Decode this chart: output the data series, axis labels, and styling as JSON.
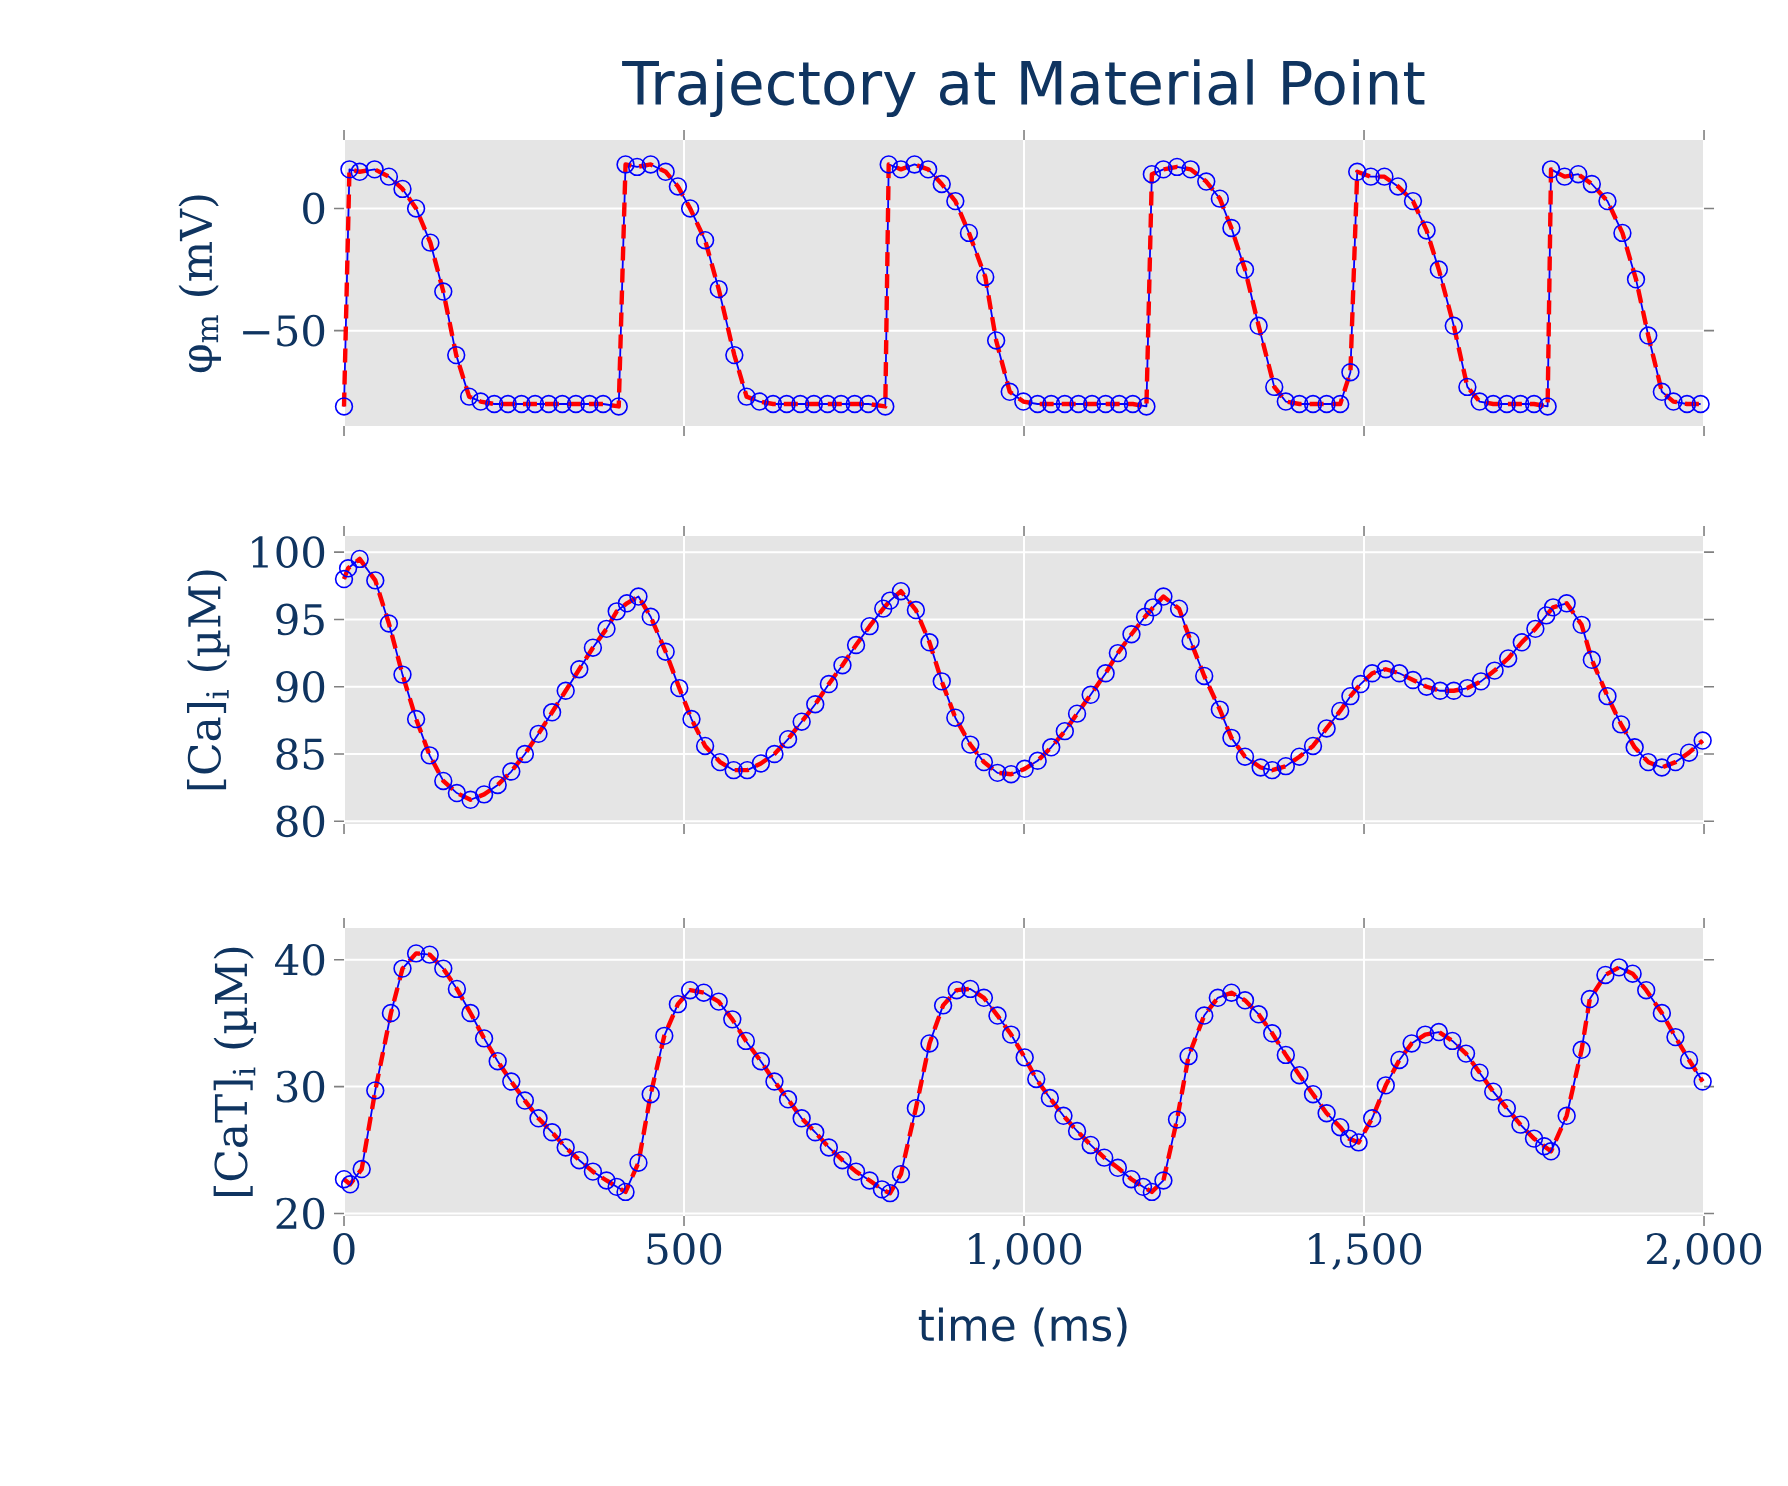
{
  "chart_data": [
    {
      "type": "line",
      "title": "Trajectory at Material Point",
      "ylabel": "φ$_{m}$ (mV)",
      "grid": true,
      "tick_labels": "y",
      "xlim": [
        0,
        2000
      ],
      "ylim": [
        -89,
        28
      ],
      "xticks": [
        0,
        500,
        1000,
        1500,
        2000
      ],
      "yticks": [
        {
          "value": -50,
          "label": "−50"
        },
        0
      ],
      "x": [
        0,
        8,
        23,
        45,
        66,
        86,
        106,
        127,
        146,
        165,
        184,
        201,
        221,
        241,
        261,
        281,
        301,
        321,
        341,
        361,
        381,
        404,
        414,
        431,
        451,
        473,
        491,
        509,
        531,
        551,
        574,
        592,
        611,
        631,
        651,
        671,
        691,
        711,
        731,
        751,
        771,
        796,
        801,
        819,
        839,
        859,
        879,
        899,
        919,
        943,
        959,
        979,
        999,
        1020,
        1040,
        1060,
        1080,
        1100,
        1120,
        1140,
        1160,
        1180,
        1188,
        1205,
        1225,
        1245,
        1268,
        1288,
        1305,
        1325,
        1345,
        1368,
        1385,
        1405,
        1425,
        1445,
        1465,
        1480,
        1490,
        1510,
        1530,
        1550,
        1572,
        1592,
        1610,
        1632,
        1652,
        1670,
        1690,
        1710,
        1730,
        1750,
        1770,
        1775,
        1795,
        1815,
        1835,
        1858,
        1880,
        1900,
        1918,
        1938,
        1955,
        1975,
        1995
      ],
      "series": [
        {
          "color": "#0000ff",
          "marker": "circle",
          "line_style": "solid",
          "values": [
            -81,
            16,
            15,
            16,
            13,
            8,
            0,
            -14,
            -34,
            -60,
            -77,
            -79,
            -80,
            -80,
            -80,
            -80,
            -80,
            -80,
            -80,
            -80,
            -80,
            -81,
            18,
            17,
            18,
            15,
            9,
            0,
            -13,
            -33,
            -60,
            -77,
            -79,
            -80,
            -80,
            -80,
            -80,
            -80,
            -80,
            -80,
            -80,
            -81,
            18,
            16,
            18,
            16,
            10,
            3,
            -10,
            -28,
            -54,
            -75,
            -79,
            -80,
            -80,
            -80,
            -80,
            -80,
            -80,
            -80,
            -80,
            -81,
            14,
            16,
            17,
            16,
            11,
            4,
            -8,
            -25,
            -48,
            -73,
            -79,
            -80,
            -80,
            -80,
            -80,
            -67,
            15,
            13,
            13,
            9,
            3,
            -9,
            -25,
            -48,
            -73,
            -79,
            -80,
            -80,
            -80,
            -80,
            -81,
            16,
            13,
            14,
            10,
            3,
            -10,
            -29,
            -52,
            -75,
            -79,
            -80,
            -80
          ]
        },
        {
          "color": "#ff0000",
          "marker": "none",
          "line_style": "dashed",
          "values": [
            -81,
            16,
            15,
            16,
            13,
            8,
            0,
            -14,
            -34,
            -60,
            -77,
            -79,
            -80,
            -80,
            -80,
            -80,
            -80,
            -80,
            -80,
            -80,
            -80,
            -81,
            18,
            17,
            18,
            15,
            9,
            0,
            -13,
            -33,
            -60,
            -77,
            -79,
            -80,
            -80,
            -80,
            -80,
            -80,
            -80,
            -80,
            -80,
            -81,
            18,
            16,
            18,
            16,
            10,
            3,
            -10,
            -28,
            -54,
            -75,
            -79,
            -80,
            -80,
            -80,
            -80,
            -80,
            -80,
            -80,
            -80,
            -81,
            14,
            16,
            17,
            16,
            11,
            4,
            -8,
            -25,
            -48,
            -73,
            -79,
            -80,
            -80,
            -80,
            -80,
            -67,
            15,
            13,
            13,
            9,
            3,
            -9,
            -25,
            -48,
            -73,
            -79,
            -80,
            -80,
            -80,
            -80,
            -81,
            16,
            13,
            14,
            10,
            3,
            -10,
            -29,
            -52,
            -75,
            -79,
            -80,
            -80
          ]
        }
      ]
    },
    {
      "type": "line",
      "ylabel": "[Ca]$_{i}$ (µM)",
      "grid": true,
      "tick_labels": "y",
      "xlim": [
        0,
        2000
      ],
      "ylim": [
        79.8,
        101.2
      ],
      "xticks": [
        0,
        500,
        1000,
        1500,
        2000
      ],
      "yticks": [
        80,
        85,
        90,
        95,
        100
      ],
      "x": [
        0,
        6,
        23,
        46,
        66,
        86,
        106,
        126,
        146,
        166,
        186,
        206,
        226,
        246,
        266,
        286,
        306,
        326,
        346,
        366,
        386,
        401,
        416,
        433,
        451,
        473,
        493,
        511,
        531,
        553,
        573,
        593,
        613,
        633,
        653,
        673,
        693,
        713,
        733,
        753,
        773,
        793,
        803,
        819,
        841,
        861,
        879,
        899,
        921,
        941,
        961,
        981,
        1001,
        1020,
        1040,
        1060,
        1078,
        1098,
        1120,
        1138,
        1158,
        1178,
        1190,
        1205,
        1228,
        1245,
        1265,
        1288,
        1305,
        1325,
        1348,
        1365,
        1385,
        1405,
        1425,
        1445,
        1465,
        1480,
        1495,
        1512,
        1532,
        1552,
        1572,
        1592,
        1612,
        1632,
        1652,
        1672,
        1692,
        1712,
        1732,
        1752,
        1768,
        1778,
        1798,
        1820,
        1835,
        1858,
        1878,
        1898,
        1918,
        1938,
        1958,
        1978,
        1998
      ],
      "series": [
        {
          "color": "#0000ff",
          "marker": "circle",
          "line_style": "solid",
          "values": [
            98.0,
            98.8,
            99.5,
            97.9,
            94.7,
            90.9,
            87.6,
            84.9,
            83.0,
            82.1,
            81.6,
            82.0,
            82.7,
            83.7,
            85.0,
            86.5,
            88.1,
            89.7,
            91.3,
            92.9,
            94.3,
            95.6,
            96.2,
            96.7,
            95.2,
            92.6,
            89.9,
            87.6,
            85.6,
            84.4,
            83.8,
            83.8,
            84.3,
            85.0,
            86.1,
            87.4,
            88.7,
            90.2,
            91.6,
            93.1,
            94.5,
            95.8,
            96.4,
            97.1,
            95.7,
            93.3,
            90.4,
            87.7,
            85.7,
            84.4,
            83.6,
            83.5,
            83.9,
            84.5,
            85.5,
            86.7,
            88.0,
            89.4,
            91.0,
            92.5,
            93.9,
            95.2,
            95.9,
            96.7,
            95.8,
            93.4,
            90.8,
            88.3,
            86.2,
            84.8,
            84.0,
            83.8,
            84.1,
            84.8,
            85.6,
            86.9,
            88.2,
            89.3,
            90.2,
            91.0,
            91.3,
            91.0,
            90.5,
            90.0,
            89.7,
            89.7,
            89.9,
            90.4,
            91.2,
            92.1,
            93.3,
            94.3,
            95.3,
            95.9,
            96.2,
            94.6,
            92.0,
            89.3,
            87.2,
            85.5,
            84.4,
            84.0,
            84.4,
            85.1,
            86.0
          ]
        },
        {
          "color": "#ff0000",
          "marker": "none",
          "line_style": "dashed",
          "values": [
            98.0,
            98.8,
            99.5,
            97.9,
            94.7,
            90.9,
            87.6,
            84.9,
            83.0,
            82.1,
            81.6,
            82.0,
            82.7,
            83.7,
            85.0,
            86.5,
            88.1,
            89.7,
            91.3,
            92.9,
            94.3,
            95.6,
            96.2,
            96.7,
            95.2,
            92.6,
            89.9,
            87.6,
            85.6,
            84.4,
            83.8,
            83.8,
            84.3,
            85.0,
            86.1,
            87.4,
            88.7,
            90.2,
            91.6,
            93.1,
            94.5,
            95.8,
            96.4,
            97.1,
            95.7,
            93.3,
            90.4,
            87.7,
            85.7,
            84.4,
            83.6,
            83.5,
            83.9,
            84.5,
            85.5,
            86.7,
            88.0,
            89.4,
            91.0,
            92.5,
            93.9,
            95.2,
            95.9,
            96.7,
            95.8,
            93.4,
            90.8,
            88.3,
            86.2,
            84.8,
            84.0,
            83.8,
            84.1,
            84.8,
            85.6,
            86.9,
            88.2,
            89.3,
            90.2,
            91.0,
            91.3,
            91.0,
            90.5,
            90.0,
            89.7,
            89.7,
            89.9,
            90.4,
            91.2,
            92.1,
            93.3,
            94.3,
            95.3,
            95.9,
            96.2,
            94.6,
            92.0,
            89.3,
            87.2,
            85.5,
            84.4,
            84.0,
            84.4,
            85.1,
            86.0
          ]
        }
      ]
    },
    {
      "type": "line",
      "ylabel": "[CaT]$_{i}$ (µM)",
      "xlabel": "time (ms)",
      "grid": true,
      "xlim": [
        0,
        2000
      ],
      "ylim": [
        19.8,
        42.5
      ],
      "xticks": [
        {
          "value": 0,
          "label": "0"
        },
        {
          "value": 500,
          "label": "500"
        },
        {
          "value": 1000,
          "label": "1,000"
        },
        {
          "value": 1500,
          "label": "1,500"
        },
        {
          "value": 2000,
          "label": "2,000"
        }
      ],
      "yticks": [
        20,
        30,
        40
      ],
      "x": [
        0,
        9,
        26,
        46,
        69,
        86,
        106,
        126,
        146,
        166,
        186,
        206,
        226,
        246,
        266,
        286,
        306,
        326,
        346,
        366,
        386,
        401,
        414,
        433,
        451,
        471,
        491,
        509,
        529,
        551,
        571,
        591,
        613,
        633,
        653,
        673,
        693,
        713,
        733,
        753,
        773,
        791,
        803,
        819,
        841,
        861,
        881,
        901,
        921,
        941,
        961,
        981,
        1001,
        1018,
        1038,
        1058,
        1078,
        1098,
        1118,
        1138,
        1158,
        1175,
        1188,
        1205,
        1225,
        1242,
        1265,
        1285,
        1305,
        1325,
        1345,
        1365,
        1385,
        1405,
        1425,
        1445,
        1465,
        1478,
        1492,
        1512,
        1532,
        1552,
        1570,
        1590,
        1610,
        1630,
        1650,
        1670,
        1690,
        1710,
        1730,
        1750,
        1765,
        1775,
        1798,
        1820,
        1832,
        1855,
        1875,
        1895,
        1915,
        1938,
        1958,
        1978,
        1998
      ],
      "series": [
        {
          "color": "#0000ff",
          "marker": "circle",
          "line_style": "solid",
          "values": [
            22.7,
            22.3,
            23.5,
            29.7,
            35.8,
            39.3,
            40.5,
            40.4,
            39.3,
            37.7,
            35.8,
            33.8,
            32.0,
            30.4,
            28.9,
            27.5,
            26.4,
            25.2,
            24.2,
            23.3,
            22.6,
            22.1,
            21.7,
            24.0,
            29.4,
            34.0,
            36.5,
            37.6,
            37.4,
            36.7,
            35.3,
            33.6,
            32.0,
            30.4,
            29.0,
            27.5,
            26.4,
            25.2,
            24.2,
            23.3,
            22.6,
            21.9,
            21.6,
            23.1,
            28.3,
            33.4,
            36.4,
            37.6,
            37.7,
            37.0,
            35.6,
            34.1,
            32.3,
            30.6,
            29.1,
            27.7,
            26.5,
            25.4,
            24.4,
            23.6,
            22.7,
            22.1,
            21.7,
            22.6,
            27.4,
            32.4,
            35.6,
            37.0,
            37.4,
            36.8,
            35.7,
            34.2,
            32.5,
            30.9,
            29.4,
            27.9,
            26.8,
            25.9,
            25.6,
            27.5,
            30.1,
            32.1,
            33.4,
            34.1,
            34.3,
            33.6,
            32.6,
            31.1,
            29.6,
            28.3,
            27.0,
            25.9,
            25.3,
            24.9,
            27.7,
            32.9,
            36.9,
            38.8,
            39.4,
            38.9,
            37.6,
            35.8,
            33.9,
            32.1,
            30.4
          ]
        },
        {
          "color": "#ff0000",
          "marker": "none",
          "line_style": "dashed",
          "values": [
            22.7,
            22.3,
            23.5,
            29.7,
            35.8,
            39.3,
            40.5,
            40.4,
            39.3,
            37.7,
            35.8,
            33.8,
            32.0,
            30.4,
            28.9,
            27.5,
            26.4,
            25.2,
            24.2,
            23.3,
            22.6,
            22.1,
            21.7,
            24.0,
            29.4,
            34.0,
            36.5,
            37.6,
            37.4,
            36.7,
            35.3,
            33.6,
            32.0,
            30.4,
            29.0,
            27.5,
            26.4,
            25.2,
            24.2,
            23.3,
            22.6,
            21.9,
            21.6,
            23.1,
            28.3,
            33.4,
            36.4,
            37.6,
            37.7,
            37.0,
            35.6,
            34.1,
            32.3,
            30.6,
            29.1,
            27.7,
            26.5,
            25.4,
            24.4,
            23.6,
            22.7,
            22.1,
            21.7,
            22.6,
            27.4,
            32.4,
            35.6,
            37.0,
            37.4,
            36.8,
            35.7,
            34.2,
            32.5,
            30.9,
            29.4,
            27.9,
            26.8,
            25.9,
            25.6,
            27.5,
            30.1,
            32.1,
            33.4,
            34.1,
            34.3,
            33.6,
            32.6,
            31.1,
            29.6,
            28.3,
            27.0,
            25.9,
            25.3,
            24.9,
            27.7,
            32.9,
            36.9,
            38.8,
            39.4,
            38.9,
            37.6,
            35.8,
            33.9,
            32.1,
            30.4
          ]
        }
      ]
    }
  ]
}
